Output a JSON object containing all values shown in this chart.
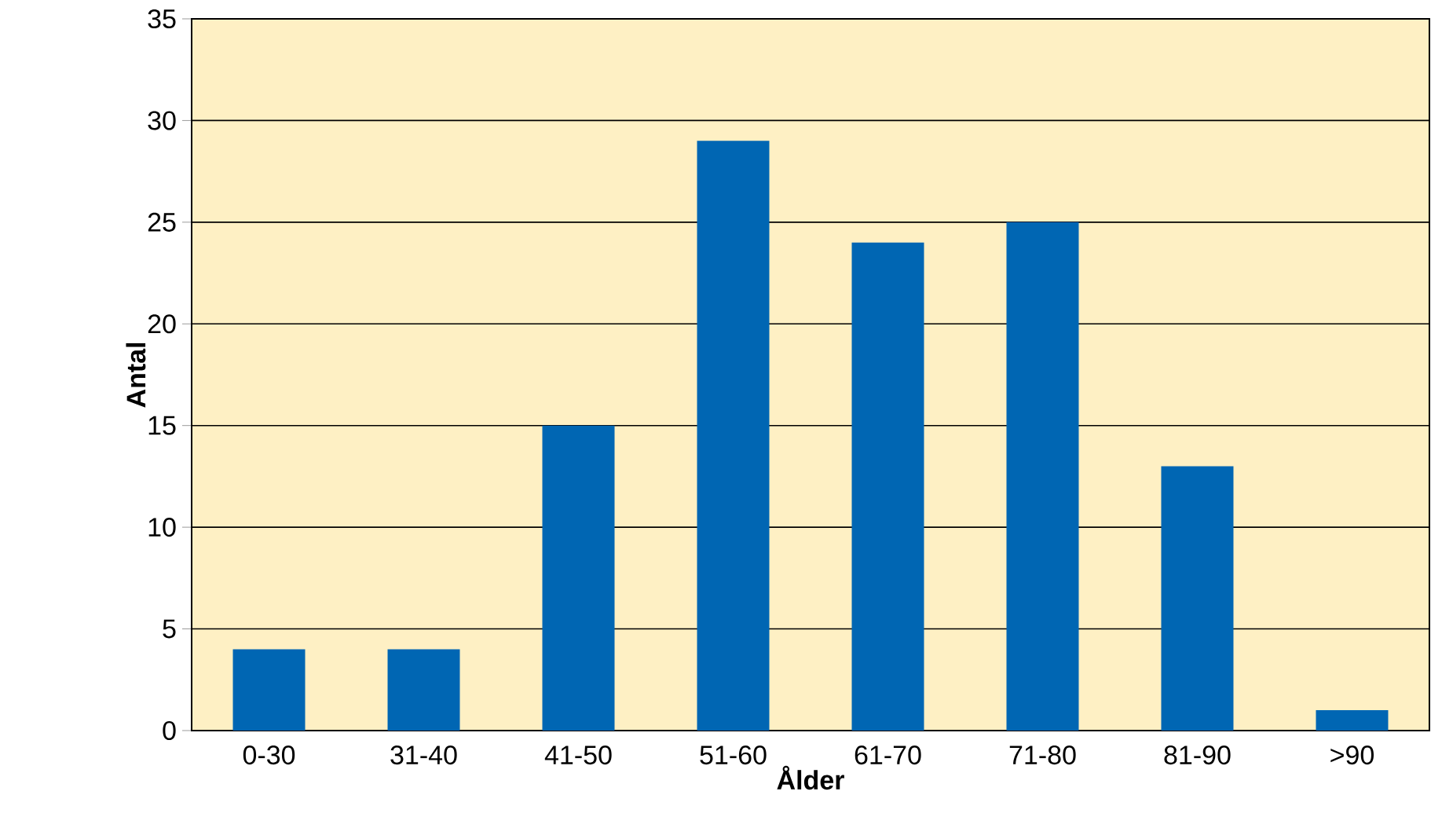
{
  "chart_data": {
    "type": "bar",
    "xlabel": "Ålder",
    "ylabel": "Antal",
    "categories": [
      "0-30",
      "31-40",
      "41-50",
      "51-60",
      "61-70",
      "71-80",
      "81-90",
      ">90"
    ],
    "values": [
      4,
      4,
      15,
      29,
      24,
      25,
      13,
      1
    ],
    "color": "#0066b3",
    "ylim": [
      0,
      35
    ],
    "yticks": [
      0,
      5,
      10,
      15,
      20,
      25,
      30,
      35
    ],
    "grid": "y"
  }
}
